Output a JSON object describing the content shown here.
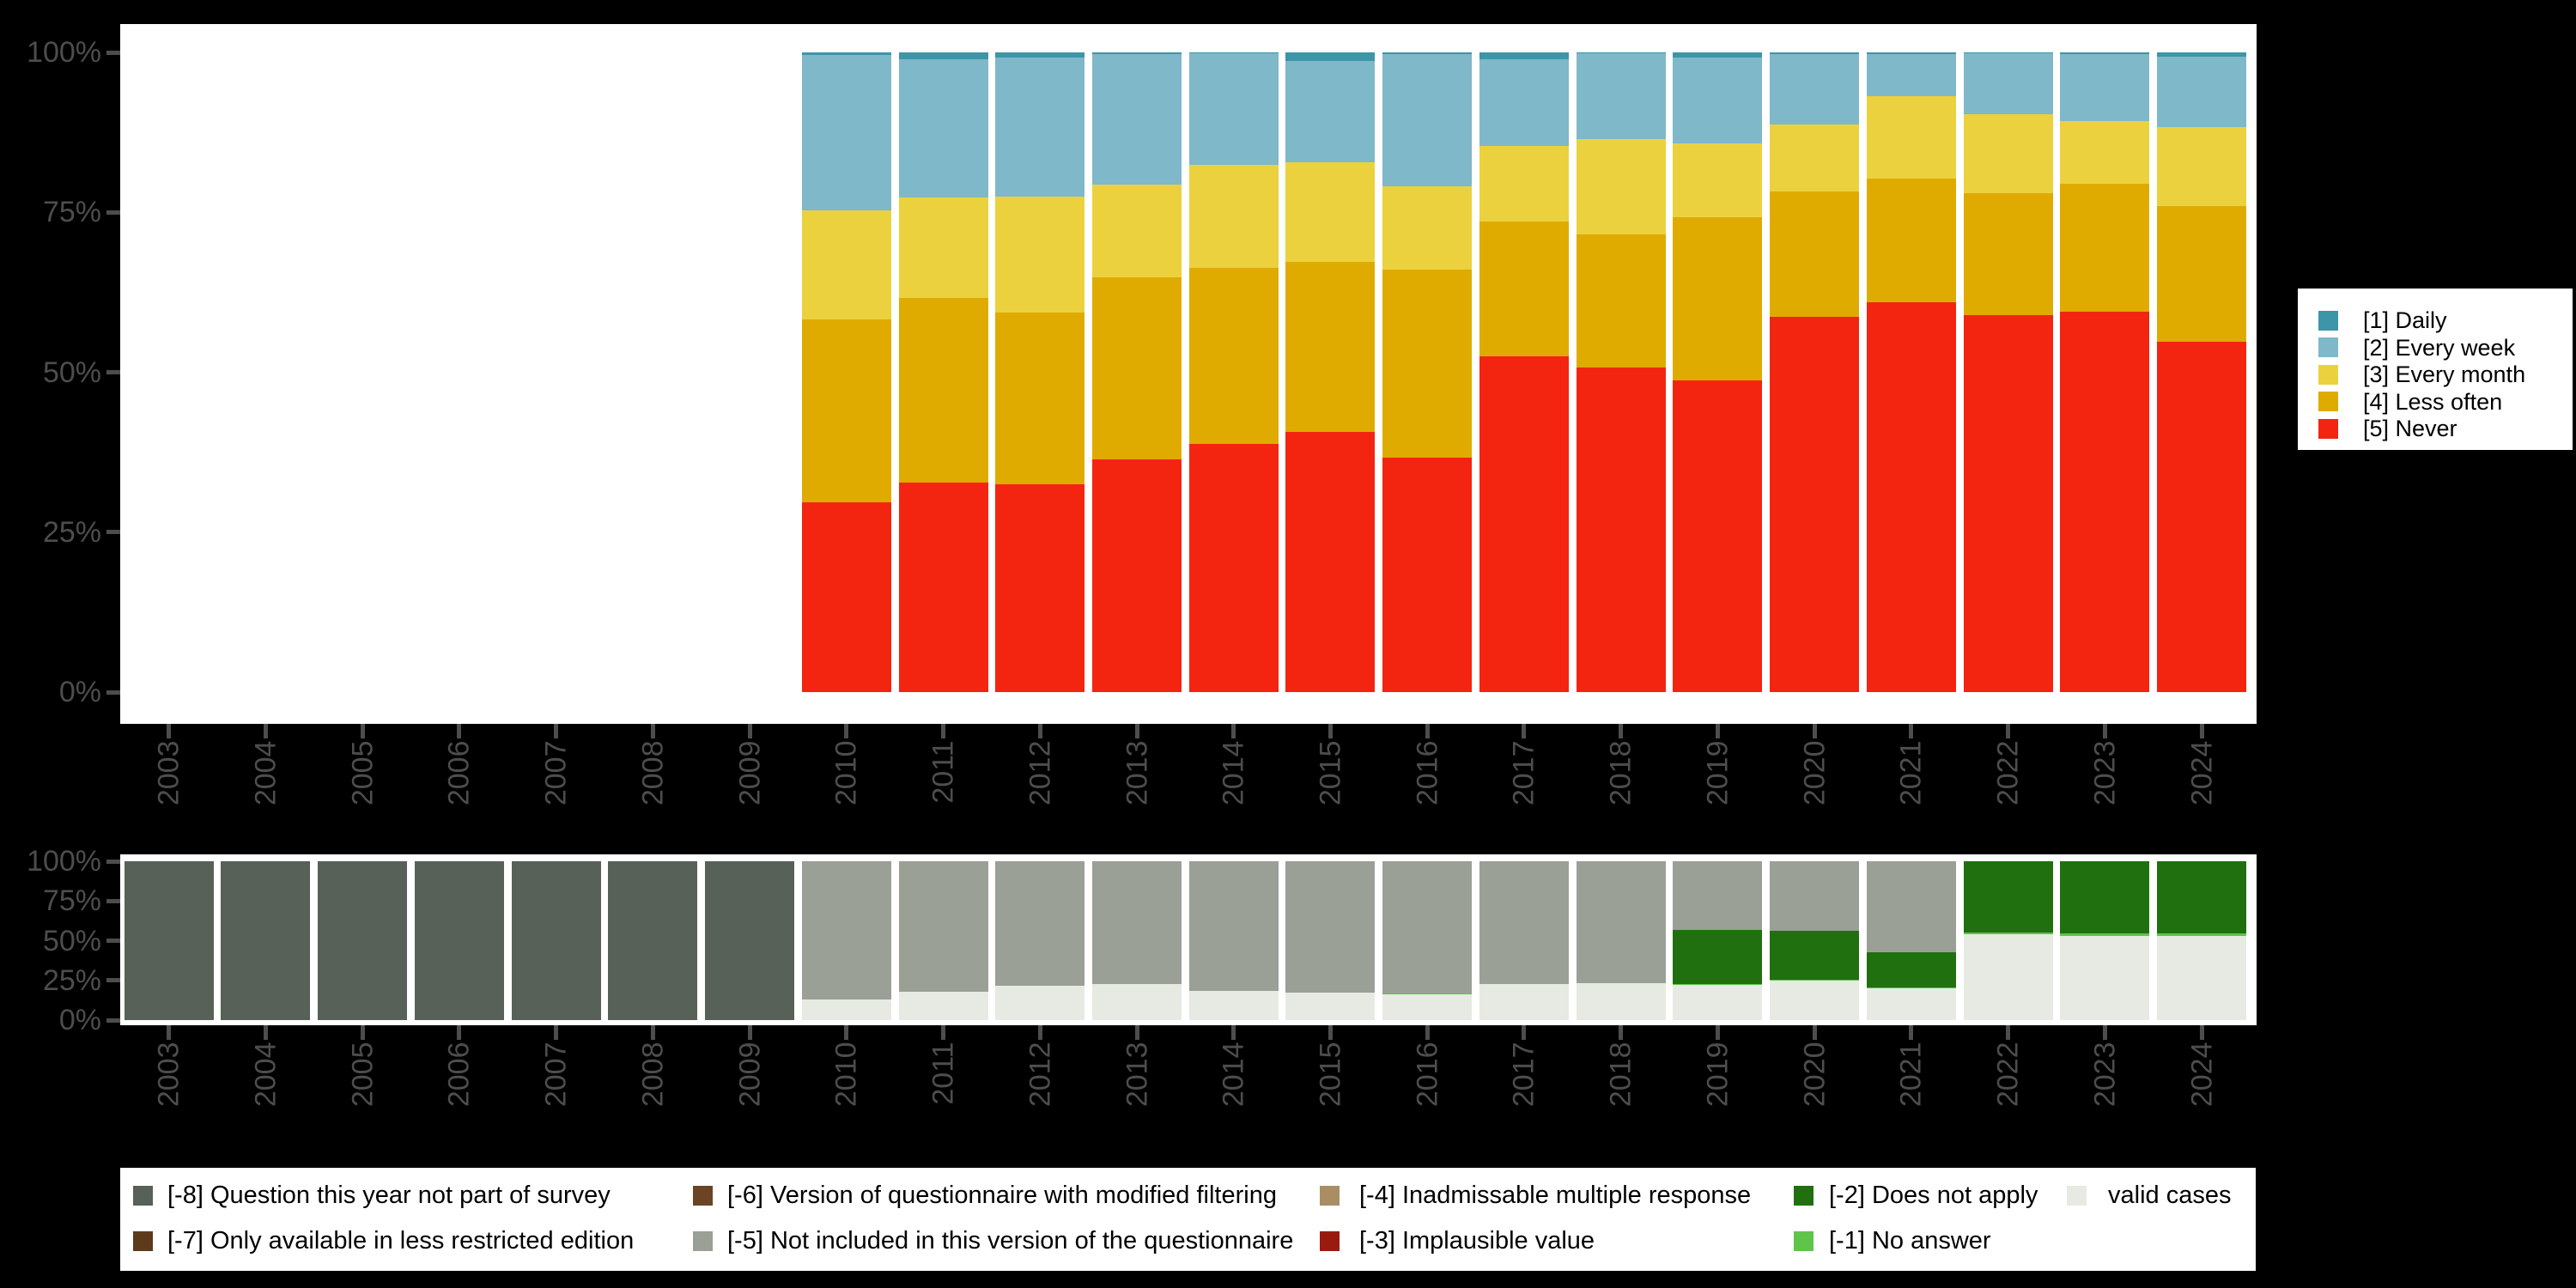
{
  "background": "#000000",
  "axis": {
    "text_color": "#4d4d4d",
    "tick_color": "#4d4d4d"
  },
  "chart_data": [
    {
      "id": "frequency-distribution",
      "type": "bar",
      "stacked": true,
      "percent": true,
      "title": "",
      "xlabel": "",
      "ylabel": "",
      "ylim": [
        0,
        100
      ],
      "grid": false,
      "y_ticks": [
        "0%",
        "25%",
        "50%",
        "75%",
        "100%"
      ],
      "x": [
        "2003",
        "2004",
        "2005",
        "2006",
        "2007",
        "2008",
        "2009",
        "2010",
        "2011",
        "2012",
        "2013",
        "2014",
        "2015",
        "2016",
        "2017",
        "2018",
        "2019",
        "2020",
        "2021",
        "2022",
        "2023",
        "2024"
      ],
      "legend_position": "right",
      "series": [
        {
          "name": "[1] Daily",
          "color": "#3d95a8",
          "values": [
            null,
            null,
            null,
            null,
            null,
            null,
            null,
            0.4,
            1.1,
            0.8,
            0.3,
            0.1,
            1.3,
            0.3,
            1.1,
            0.2,
            0.8,
            0.3,
            0.3,
            0.2,
            0.3,
            0.7
          ]
        },
        {
          "name": "[2] Every week",
          "color": "#7fb8c8",
          "values": [
            null,
            null,
            null,
            null,
            null,
            null,
            null,
            24.3,
            21.6,
            21.7,
            20.4,
            17.5,
            15.9,
            20.6,
            13.5,
            13.3,
            13.4,
            11.0,
            6.5,
            9.5,
            10.5,
            11.0
          ]
        },
        {
          "name": "[3] Every month",
          "color": "#ecd13e",
          "values": [
            null,
            null,
            null,
            null,
            null,
            null,
            null,
            17.0,
            15.7,
            18.2,
            14.5,
            16.1,
            15.6,
            13.0,
            11.9,
            15.0,
            11.6,
            10.5,
            12.9,
            12.3,
            9.8,
            12.3
          ]
        },
        {
          "name": "[4] Less often",
          "color": "#dfab00",
          "values": [
            null,
            null,
            null,
            null,
            null,
            null,
            null,
            28.6,
            28.8,
            26.8,
            28.4,
            27.5,
            26.5,
            29.5,
            21.0,
            20.8,
            25.5,
            19.6,
            19.4,
            19.1,
            19.9,
            21.2
          ]
        },
        {
          "name": "[5] Never",
          "color": "#f32511",
          "values": [
            null,
            null,
            null,
            null,
            null,
            null,
            null,
            29.7,
            32.8,
            32.5,
            36.4,
            38.8,
            40.7,
            36.6,
            52.5,
            50.7,
            48.7,
            58.6,
            60.9,
            58.9,
            59.5,
            54.8
          ]
        }
      ]
    },
    {
      "id": "missing-values",
      "type": "bar",
      "stacked": true,
      "percent": true,
      "title": "",
      "xlabel": "",
      "ylabel": "",
      "ylim": [
        0,
        100
      ],
      "grid": false,
      "y_ticks": [
        "0%",
        "25%",
        "50%",
        "75%",
        "100%"
      ],
      "x": [
        "2003",
        "2004",
        "2005",
        "2006",
        "2007",
        "2008",
        "2009",
        "2010",
        "2011",
        "2012",
        "2013",
        "2014",
        "2015",
        "2016",
        "2017",
        "2018",
        "2019",
        "2020",
        "2021",
        "2022",
        "2023",
        "2024"
      ],
      "legend_position": "bottom",
      "series": [
        {
          "name": "[-8] Question this year not part of survey",
          "color": "#586157",
          "values": [
            100,
            100,
            100,
            100,
            100,
            100,
            100,
            0,
            0,
            0,
            0,
            0,
            0,
            0,
            0,
            0,
            0,
            0,
            0,
            0,
            0,
            0
          ]
        },
        {
          "name": "[-5] Not included in this version of the questionnaire",
          "color": "#9aa096",
          "values": [
            0,
            0,
            0,
            0,
            0,
            0,
            0,
            87.0,
            82.0,
            78.5,
            77.5,
            81.5,
            82.5,
            83.5,
            77.5,
            76.5,
            43.0,
            44.0,
            57.5,
            0,
            0,
            0
          ]
        },
        {
          "name": "[-2] Does not apply",
          "color": "#20700f",
          "values": [
            0,
            0,
            0,
            0,
            0,
            0,
            0,
            0,
            0,
            0,
            0,
            0,
            0,
            0,
            0,
            0,
            34.5,
            30.5,
            22.0,
            45.0,
            45.5,
            45.5
          ]
        },
        {
          "name": "[-1] No answer",
          "color": "#5ec44a",
          "values": [
            0,
            0,
            0,
            0,
            0,
            0,
            0,
            0,
            0,
            0,
            0,
            0,
            0,
            0.5,
            0,
            0.5,
            0.5,
            0.5,
            0.5,
            1.0,
            1.5,
            1.5
          ]
        },
        {
          "name": "valid cases",
          "color": "#e7eae2",
          "values": [
            0,
            0,
            0,
            0,
            0,
            0,
            0,
            13.0,
            18.0,
            21.5,
            22.5,
            18.5,
            17.5,
            16.0,
            22.5,
            23.0,
            22.0,
            25.0,
            20.0,
            54.0,
            53.0,
            53.0
          ]
        }
      ],
      "legend": [
        {
          "label": "[-8] Question this year not part of survey",
          "color": "#586157"
        },
        {
          "label": "[-7] Only available in less restricted edition",
          "color": "#5e3a1d"
        },
        {
          "label": "[-6] Version of questionnaire with modified filtering",
          "color": "#6b4423"
        },
        {
          "label": "[-5] Not included in this version of the questionnaire",
          "color": "#9aa096"
        },
        {
          "label": "[-4] Inadmissable multiple response",
          "color": "#a98e64"
        },
        {
          "label": "[-3] Implausible value",
          "color": "#9b1a10"
        },
        {
          "label": "[-2] Does not apply",
          "color": "#20700f"
        },
        {
          "label": "[-1] No answer",
          "color": "#5ec44a"
        },
        {
          "label": "valid cases",
          "color": "#e7eae2"
        }
      ]
    }
  ]
}
